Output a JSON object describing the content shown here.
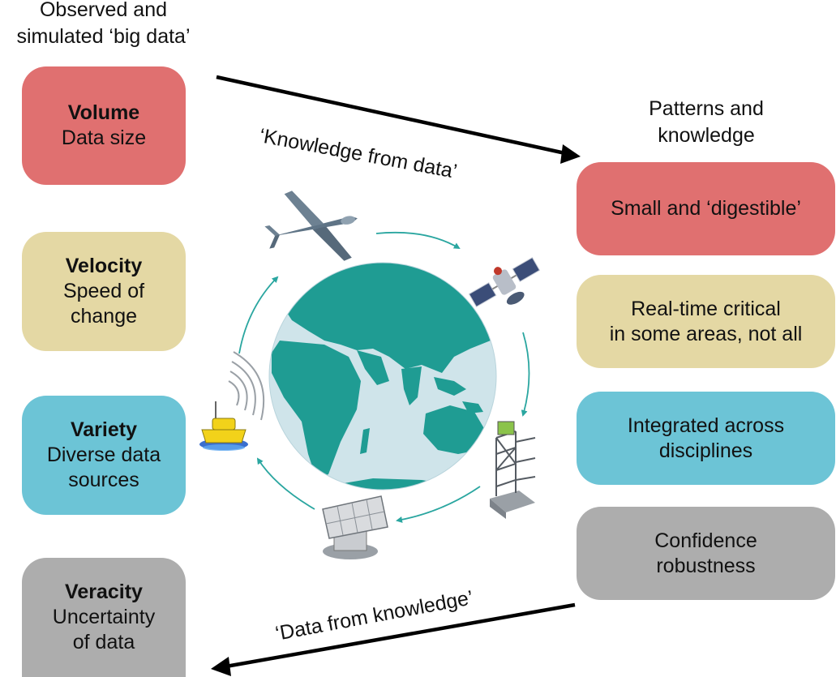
{
  "left_column": {
    "heading": [
      "Observed and",
      "simulated ‘big data’"
    ],
    "boxes": [
      {
        "title": "Volume",
        "lines": [
          "Data size"
        ],
        "color": "#e07070"
      },
      {
        "title": "Velocity",
        "lines": [
          "Speed of",
          "change"
        ],
        "color": "#e4d8a4"
      },
      {
        "title": "Variety",
        "lines": [
          "Diverse data",
          "sources"
        ],
        "color": "#6cc4d6"
      },
      {
        "title": "Veracity",
        "lines": [
          "Uncertainty",
          "of data"
        ],
        "color": "#adadad"
      }
    ]
  },
  "right_column": {
    "heading": [
      "Patterns and",
      "knowledge"
    ],
    "boxes": [
      {
        "lines": [
          "Small and ‘digestible’"
        ],
        "color": "#e07070"
      },
      {
        "lines": [
          "Real-time critical",
          "in some areas, not all"
        ],
        "color": "#e4d8a4"
      },
      {
        "lines": [
          "Integrated across",
          "disciplines"
        ],
        "color": "#6cc4d6"
      },
      {
        "lines": [
          "Confidence",
          "robustness"
        ],
        "color": "#adadad"
      }
    ]
  },
  "arrows": {
    "top_label": "‘Knowledge from data’",
    "bottom_label": "‘Data from knowledge’"
  },
  "center": {
    "icons": [
      "drone-icon",
      "satellite-icon",
      "flux-tower-icon",
      "radio-telescope-icon",
      "buoy-icon",
      "globe-icon"
    ],
    "globe_ocean_color": "#cfe4ea",
    "globe_land_color": "#1f9c93",
    "cycle_arrow_color": "#2aa6a0"
  }
}
